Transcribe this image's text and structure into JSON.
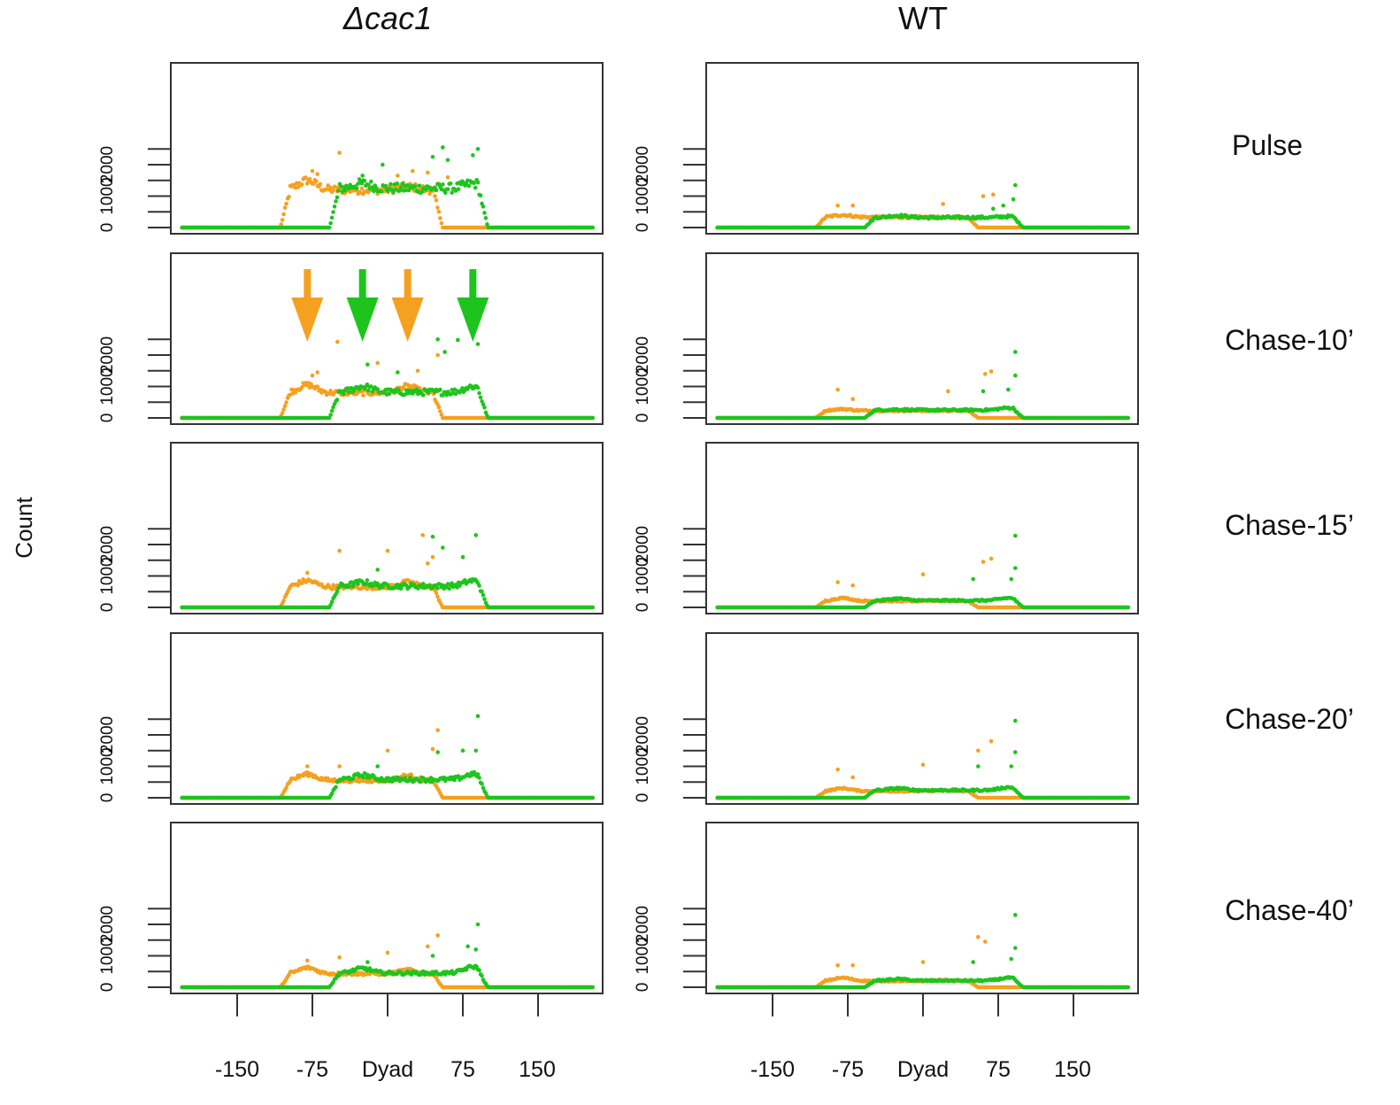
{
  "columns": [
    {
      "title": "Δcac1",
      "italic": true
    },
    {
      "title": "WT",
      "italic": false
    }
  ],
  "y_axis_label": "Count",
  "y_ticks": [
    "0",
    "1000",
    "2000"
  ],
  "x_ticks": [
    "-150",
    "-75",
    "Dyad",
    "75",
    "150"
  ],
  "row_labels": [
    "Pulse",
    "Chase-10’",
    "Chase-15’",
    "Chase-20’",
    "Chase-40’"
  ],
  "colors": {
    "series_a": "#f5a01f",
    "series_b": "#1ec41e",
    "frame": "#333333"
  },
  "chart_data": {
    "type": "scatter",
    "layout": "5 rows x 2 columns of panels",
    "x_range": [
      -205,
      205
    ],
    "y_range": [
      0,
      2550
    ],
    "x_tick_values": [
      -150,
      -75,
      0,
      75,
      150
    ],
    "y_tick_values": [
      0,
      500,
      1000,
      1500,
      2000,
      2500
    ],
    "series_colors": [
      "orange",
      "green"
    ],
    "annotations": "Δcac1 Chase-10’ panel: orange downward arrows at x = -80 and 20, green downward arrows at x = -25 and 85",
    "panels": [
      {
        "column": "Δcac1",
        "row": "Pulse",
        "orange_plateau": 1200,
        "green_plateau": 1250,
        "orange_peaks": [
          [
            -80,
            1500
          ],
          [
            20,
            1300
          ]
        ],
        "green_peaks": [
          [
            -25,
            1400
          ],
          [
            85,
            1400
          ]
        ],
        "orange_outliers": [
          [
            -75,
            1800
          ],
          [
            -70,
            1700
          ],
          [
            -48,
            2380
          ],
          [
            10,
            1650
          ],
          [
            25,
            1800
          ],
          [
            40,
            1750
          ],
          [
            60,
            1600
          ]
        ],
        "green_outliers": [
          [
            -25,
            1650
          ],
          [
            -5,
            2000
          ],
          [
            45,
            2250
          ],
          [
            55,
            2550
          ],
          [
            60,
            2150
          ],
          [
            85,
            2300
          ],
          [
            90,
            2500
          ]
        ]
      },
      {
        "column": "WT",
        "row": "Pulse",
        "orange_plateau": 330,
        "green_plateau": 320,
        "orange_peaks": [
          [
            -80,
            400
          ],
          [
            20,
            320
          ]
        ],
        "green_peaks": [
          [
            -25,
            380
          ],
          [
            85,
            350
          ]
        ],
        "orange_outliers": [
          [
            -85,
            700
          ],
          [
            -70,
            700
          ],
          [
            20,
            750
          ],
          [
            70,
            1050
          ],
          [
            60,
            1000
          ]
        ],
        "green_outliers": [
          [
            70,
            600
          ],
          [
            80,
            700
          ],
          [
            90,
            900
          ],
          [
            92,
            1350
          ]
        ]
      },
      {
        "column": "Δcac1",
        "row": "Chase-10’",
        "orange_plateau": 800,
        "green_plateau": 820,
        "orange_peaks": [
          [
            -80,
            1050
          ],
          [
            20,
            1000
          ]
        ],
        "green_peaks": [
          [
            -25,
            1000
          ],
          [
            85,
            1000
          ]
        ],
        "orange_outliers": [
          [
            -75,
            1350
          ],
          [
            -70,
            1450
          ],
          [
            -50,
            2420
          ],
          [
            -10,
            1750
          ],
          [
            30,
            1500
          ],
          [
            50,
            2000
          ]
        ],
        "green_outliers": [
          [
            -20,
            1700
          ],
          [
            10,
            1450
          ],
          [
            50,
            2500
          ],
          [
            57,
            2100
          ],
          [
            70,
            2480
          ],
          [
            90,
            2350
          ]
        ]
      },
      {
        "column": "WT",
        "row": "Chase-10’",
        "orange_plateau": 230,
        "green_plateau": 250,
        "orange_peaks": [
          [
            -80,
            280
          ],
          [
            20,
            230
          ]
        ],
        "green_peaks": [
          [
            -25,
            270
          ],
          [
            85,
            320
          ]
        ],
        "orange_outliers": [
          [
            -85,
            900
          ],
          [
            -70,
            600
          ],
          [
            25,
            850
          ],
          [
            62,
            1400
          ],
          [
            68,
            1480
          ]
        ],
        "green_outliers": [
          [
            60,
            850
          ],
          [
            85,
            900
          ],
          [
            92,
            2100
          ],
          [
            92,
            1350
          ]
        ]
      },
      {
        "column": "Δcac1",
        "row": "Chase-15’",
        "orange_plateau": 650,
        "green_plateau": 680,
        "orange_peaks": [
          [
            -80,
            850
          ],
          [
            20,
            800
          ]
        ],
        "green_peaks": [
          [
            -25,
            800
          ],
          [
            85,
            850
          ]
        ],
        "orange_outliers": [
          [
            -80,
            1100
          ],
          [
            -48,
            1800
          ],
          [
            0,
            1800
          ],
          [
            35,
            2300
          ],
          [
            45,
            1600
          ],
          [
            40,
            1400
          ]
        ],
        "green_outliers": [
          [
            -10,
            1200
          ],
          [
            45,
            2250
          ],
          [
            55,
            1900
          ],
          [
            88,
            2300
          ],
          [
            75,
            1600
          ]
        ]
      },
      {
        "column": "WT",
        "row": "Chase-15’",
        "orange_plateau": 200,
        "green_plateau": 220,
        "orange_peaks": [
          [
            -80,
            300
          ],
          [
            20,
            220
          ]
        ],
        "green_peaks": [
          [
            -25,
            280
          ],
          [
            85,
            300
          ]
        ],
        "orange_outliers": [
          [
            -85,
            800
          ],
          [
            -70,
            700
          ],
          [
            0,
            1050
          ],
          [
            60,
            1450
          ],
          [
            68,
            1550
          ]
        ],
        "green_outliers": [
          [
            50,
            900
          ],
          [
            88,
            900
          ],
          [
            92,
            2280
          ],
          [
            92,
            1250
          ]
        ]
      },
      {
        "column": "Δcac1",
        "row": "Chase-20’",
        "orange_plateau": 550,
        "green_plateau": 580,
        "orange_peaks": [
          [
            -80,
            750
          ],
          [
            20,
            700
          ]
        ],
        "green_peaks": [
          [
            -25,
            720
          ],
          [
            85,
            750
          ]
        ],
        "orange_outliers": [
          [
            -80,
            1000
          ],
          [
            -48,
            1000
          ],
          [
            0,
            1500
          ],
          [
            45,
            1550
          ],
          [
            50,
            2150
          ]
        ],
        "green_outliers": [
          [
            -10,
            1000
          ],
          [
            50,
            1450
          ],
          [
            75,
            1500
          ],
          [
            90,
            2600
          ],
          [
            88,
            1500
          ]
        ]
      },
      {
        "column": "WT",
        "row": "Chase-20’",
        "orange_plateau": 210,
        "green_plateau": 240,
        "orange_peaks": [
          [
            -80,
            300
          ],
          [
            20,
            230
          ]
        ],
        "green_peaks": [
          [
            -25,
            300
          ],
          [
            85,
            330
          ]
        ],
        "orange_outliers": [
          [
            -85,
            900
          ],
          [
            -70,
            650
          ],
          [
            0,
            1050
          ],
          [
            55,
            1500
          ],
          [
            68,
            1800
          ]
        ],
        "green_outliers": [
          [
            55,
            1000
          ],
          [
            88,
            1000
          ],
          [
            92,
            2450
          ],
          [
            92,
            1450
          ]
        ]
      },
      {
        "column": "Δcac1",
        "row": "Chase-40’",
        "orange_plateau": 430,
        "green_plateau": 450,
        "orange_peaks": [
          [
            -80,
            620
          ],
          [
            20,
            550
          ]
        ],
        "green_peaks": [
          [
            -25,
            600
          ],
          [
            85,
            650
          ]
        ],
        "orange_outliers": [
          [
            -80,
            850
          ],
          [
            -48,
            950
          ],
          [
            0,
            1100
          ],
          [
            40,
            1300
          ],
          [
            50,
            1650
          ]
        ],
        "green_outliers": [
          [
            -20,
            800
          ],
          [
            45,
            1000
          ],
          [
            80,
            1300
          ],
          [
            90,
            2000
          ],
          [
            88,
            1200
          ]
        ]
      },
      {
        "column": "WT",
        "row": "Chase-40’",
        "orange_plateau": 200,
        "green_plateau": 210,
        "orange_peaks": [
          [
            -80,
            300
          ],
          [
            20,
            220
          ]
        ],
        "green_peaks": [
          [
            -25,
            260
          ],
          [
            85,
            300
          ]
        ],
        "orange_outliers": [
          [
            -85,
            700
          ],
          [
            -70,
            700
          ],
          [
            0,
            800
          ],
          [
            55,
            1600
          ],
          [
            62,
            1450
          ]
        ],
        "green_outliers": [
          [
            50,
            800
          ],
          [
            88,
            900
          ],
          [
            92,
            2300
          ],
          [
            92,
            1250
          ]
        ]
      }
    ]
  }
}
